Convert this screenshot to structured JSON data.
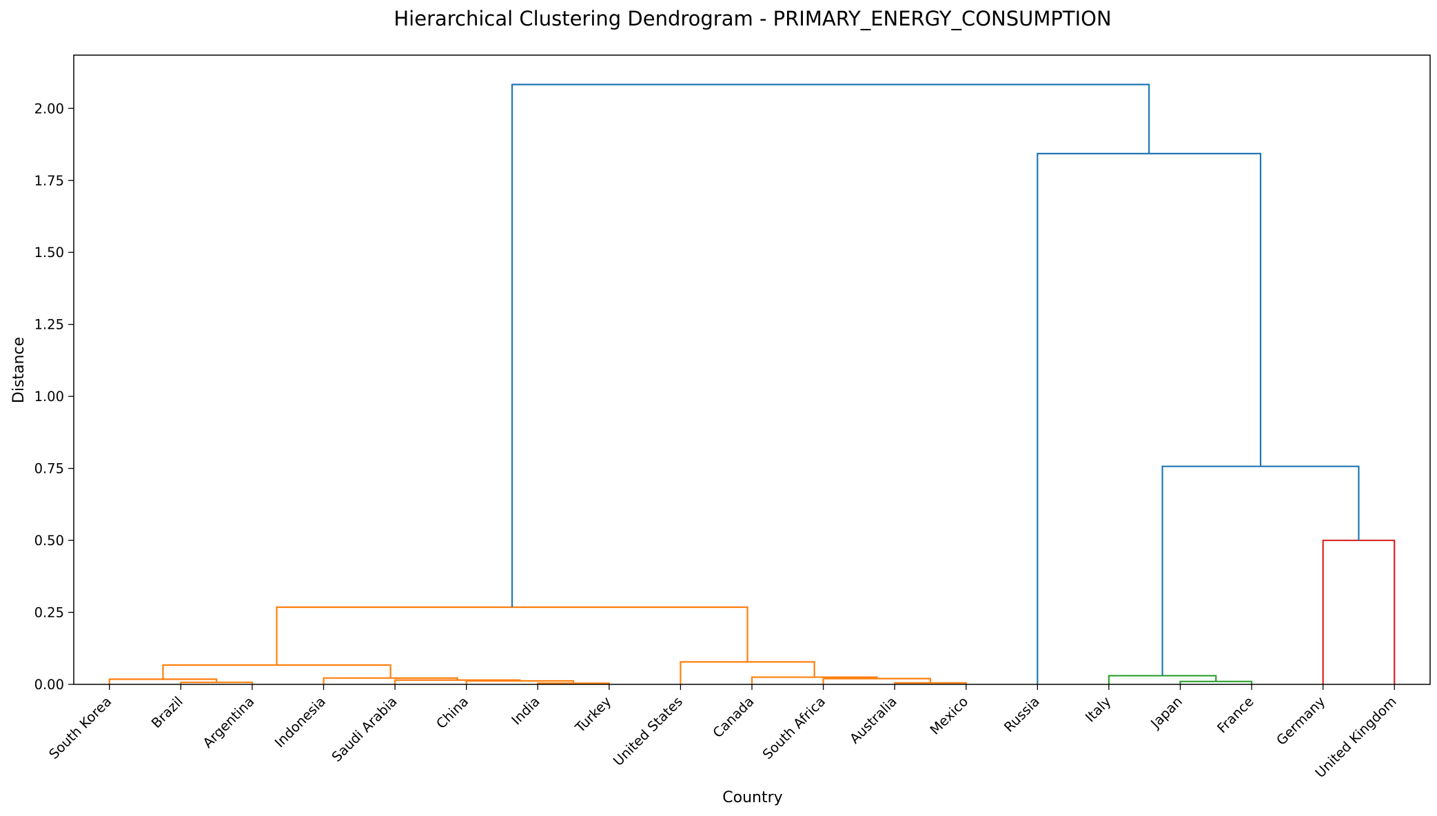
{
  "chart_data": {
    "type": "dendrogram",
    "title": "Hierarchical Clustering Dendrogram - PRIMARY_ENERGY_CONSUMPTION",
    "xlabel": "Country",
    "ylabel": "Distance",
    "ylim": [
      0,
      2.185
    ],
    "yticks": [
      0.0,
      0.25,
      0.5,
      0.75,
      1.0,
      1.25,
      1.5,
      1.75,
      2.0
    ],
    "ytick_labels": [
      "0.00",
      "0.25",
      "0.50",
      "0.75",
      "1.00",
      "1.25",
      "1.50",
      "1.75",
      "2.00"
    ],
    "grid": false,
    "leaves": [
      "South Korea",
      "Brazil",
      "Argentina",
      "Indonesia",
      "Saudi Arabia",
      "China",
      "India",
      "Turkey",
      "United States",
      "Canada",
      "South Africa",
      "Australia",
      "Mexico",
      "Russia",
      "Italy",
      "Japan",
      "France",
      "Germany",
      "United Kingdom"
    ],
    "links": [
      {
        "x": [
          1.5,
          1.5,
          2.5,
          2.5
        ],
        "y": [
          0.0,
          0.007,
          0.007,
          0.0
        ],
        "color": "#ff7f0e"
      },
      {
        "x": [
          0.5,
          0.5,
          2.0,
          2.0
        ],
        "y": [
          0.0,
          0.018,
          0.018,
          0.007
        ],
        "color": "#ff7f0e"
      },
      {
        "x": [
          6.5,
          6.5,
          7.5,
          7.5
        ],
        "y": [
          0.0,
          0.004,
          0.004,
          0.0
        ],
        "color": "#ff7f0e"
      },
      {
        "x": [
          5.5,
          5.5,
          7.0,
          7.0
        ],
        "y": [
          0.0,
          0.012,
          0.012,
          0.004
        ],
        "color": "#ff7f0e"
      },
      {
        "x": [
          4.5,
          4.5,
          6.25,
          6.25
        ],
        "y": [
          0.0,
          0.015,
          0.015,
          0.012
        ],
        "color": "#ff7f0e"
      },
      {
        "x": [
          3.5,
          3.5,
          5.375,
          5.375
        ],
        "y": [
          0.0,
          0.022,
          0.022,
          0.015
        ],
        "color": "#ff7f0e"
      },
      {
        "x": [
          1.25,
          1.25,
          4.4375,
          4.4375
        ],
        "y": [
          0.018,
          0.067,
          0.067,
          0.022
        ],
        "color": "#ff7f0e"
      },
      {
        "x": [
          11.5,
          11.5,
          12.5,
          12.5
        ],
        "y": [
          0.0,
          0.005,
          0.005,
          0.0
        ],
        "color": "#ff7f0e"
      },
      {
        "x": [
          10.5,
          10.5,
          12.0,
          12.0
        ],
        "y": [
          0.0,
          0.02,
          0.02,
          0.005
        ],
        "color": "#ff7f0e"
      },
      {
        "x": [
          9.5,
          9.5,
          11.25,
          11.25
        ],
        "y": [
          0.0,
          0.025,
          0.025,
          0.02
        ],
        "color": "#ff7f0e"
      },
      {
        "x": [
          8.5,
          8.5,
          10.375,
          10.375
        ],
        "y": [
          0.0,
          0.078,
          0.078,
          0.025
        ],
        "color": "#ff7f0e"
      },
      {
        "x": [
          2.84375,
          2.84375,
          9.4375,
          9.4375
        ],
        "y": [
          0.067,
          0.268,
          0.268,
          0.078
        ],
        "color": "#ff7f0e"
      },
      {
        "x": [
          15.5,
          15.5,
          16.5,
          16.5
        ],
        "y": [
          0.0,
          0.01,
          0.01,
          0.0
        ],
        "color": "#2ca02c"
      },
      {
        "x": [
          14.5,
          14.5,
          16.0,
          16.0
        ],
        "y": [
          0.0,
          0.03,
          0.03,
          0.01
        ],
        "color": "#2ca02c"
      },
      {
        "x": [
          17.5,
          17.5,
          18.5,
          18.5
        ],
        "y": [
          0.0,
          0.5,
          0.5,
          0.0
        ],
        "color": "#d62728"
      },
      {
        "x": [
          15.25,
          15.25,
          18.0,
          18.0
        ],
        "y": [
          0.03,
          0.757,
          0.757,
          0.5
        ],
        "color": "#1f77b4"
      },
      {
        "x": [
          13.5,
          13.5,
          16.625,
          16.625
        ],
        "y": [
          0.0,
          1.843,
          1.843,
          0.757
        ],
        "color": "#1f77b4"
      },
      {
        "x": [
          6.140625,
          6.140625,
          15.0625,
          15.0625
        ],
        "y": [
          0.268,
          2.083,
          2.083,
          1.843
        ],
        "color": "#1f77b4"
      }
    ]
  }
}
